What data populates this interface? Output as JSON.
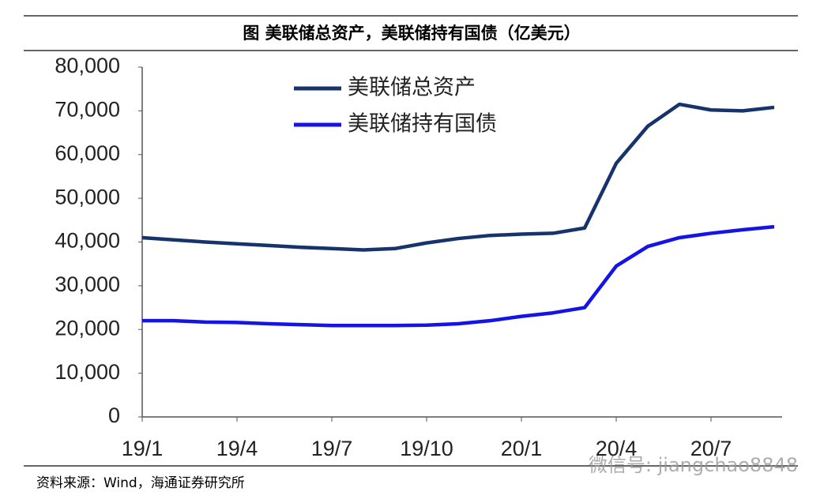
{
  "chart_data": {
    "type": "line",
    "title": "图  美联储总资产，美联储持有国债（亿美元）",
    "categories": [
      "19/1",
      null,
      null,
      "19/4",
      null,
      null,
      "19/7",
      null,
      null,
      "19/10",
      null,
      null,
      "20/1",
      null,
      null,
      "20/4",
      null,
      null,
      "20/7",
      null,
      null
    ],
    "series": [
      {
        "name": "美联储总资产",
        "color": "#17336b",
        "values": [
          41000,
          40500,
          40000,
          39600,
          39200,
          38800,
          38500,
          38200,
          38500,
          39800,
          40800,
          41500,
          41800,
          42000,
          43200,
          58000,
          66500,
          71500,
          70200,
          70000,
          70800
        ]
      },
      {
        "name": "美联储持有国债",
        "color": "#1414e6",
        "values": [
          22000,
          22000,
          21700,
          21600,
          21300,
          21100,
          20900,
          20900,
          20900,
          21000,
          21300,
          22000,
          23000,
          23800,
          25000,
          34500,
          39000,
          41000,
          42000,
          42800,
          43500
        ]
      }
    ],
    "ylim": [
      0,
      80000
    ],
    "yticks": [
      0,
      {
        "value": 10000,
        "label": "10,000"
      },
      {
        "value": 20000,
        "label": "20,000"
      },
      {
        "value": 30000,
        "label": "30,000"
      },
      {
        "value": 40000,
        "label": "40,000"
      },
      {
        "value": 50000,
        "label": "50,000"
      },
      {
        "value": 60000,
        "label": "60,000"
      },
      {
        "value": 70000,
        "label": "70,000"
      },
      {
        "value": 80000,
        "label": "80,000"
      }
    ],
    "grid": false,
    "legend": "top",
    "source": "资料来源：Wind，海通证券研究所",
    "watermark": "微信号: jiangchao8848"
  }
}
